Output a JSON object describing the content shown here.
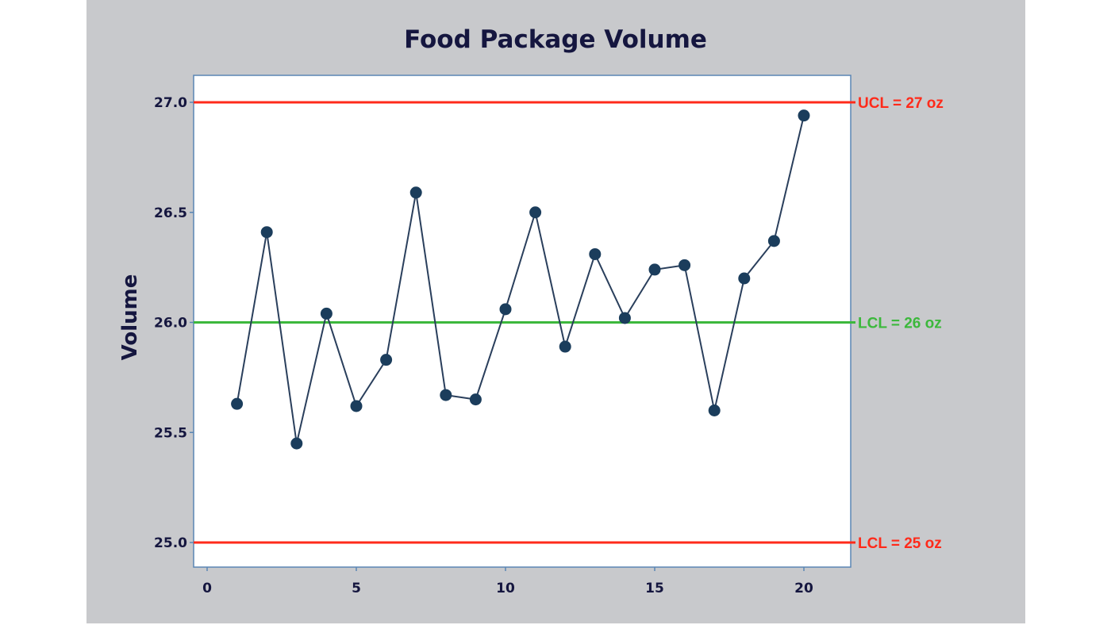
{
  "chart_data": {
    "type": "line",
    "title": "Food Package Volume",
    "xlabel": "",
    "ylabel": "Volume",
    "x": [
      1,
      2,
      3,
      4,
      5,
      6,
      7,
      8,
      9,
      10,
      11,
      12,
      13,
      14,
      15,
      16,
      17,
      18,
      19,
      20
    ],
    "series": [
      {
        "name": "Volume",
        "values": [
          25.63,
          26.41,
          25.45,
          26.04,
          25.62,
          25.83,
          26.59,
          25.67,
          25.65,
          26.06,
          26.5,
          25.89,
          26.31,
          26.02,
          26.24,
          26.26,
          25.6,
          26.2,
          26.37,
          26.94
        ],
        "color": "#1b3d5c"
      }
    ],
    "xlim": [
      -0.4,
      21.4
    ],
    "ylim": [
      24.88,
      27.12
    ],
    "xticks": [
      0,
      5,
      10,
      15,
      20
    ],
    "xtick_labels": [
      "0",
      "5",
      "10",
      "15",
      "20"
    ],
    "yticks": [
      25.0,
      25.5,
      26.0,
      26.5,
      27.0
    ],
    "ytick_labels": [
      "25.0",
      "25.5",
      "26.0",
      "26.5",
      "27.0"
    ],
    "reference_lines": [
      {
        "value": 27.0,
        "label": "UCL = 27 oz",
        "color": "#ff2a1a"
      },
      {
        "value": 26.0,
        "label": "LCL = 26 oz",
        "color": "#3cb83c"
      },
      {
        "value": 25.0,
        "label": "LCL = 25 oz",
        "color": "#ff2a1a"
      }
    ],
    "grid": false,
    "legend": null
  },
  "colors": {
    "panel_background": "#c8c9cc",
    "plot_background": "#ffffff",
    "frame": "#5a86b4",
    "text": "#15163f"
  }
}
